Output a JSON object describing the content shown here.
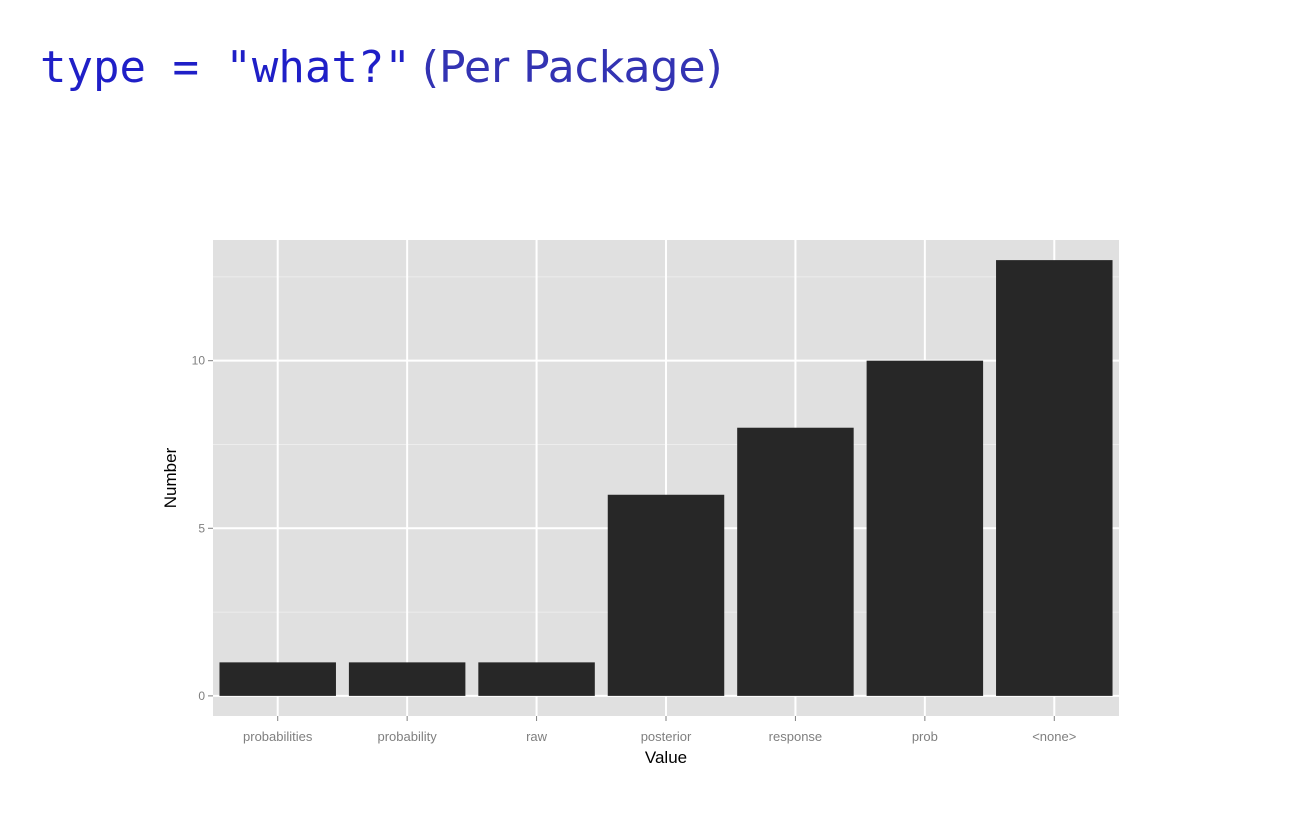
{
  "title": {
    "code": "type = \"what?\"",
    "plain": "(Per Package)"
  },
  "chart_data": {
    "type": "bar",
    "categories": [
      "probabilities",
      "probability",
      "raw",
      "posterior",
      "response",
      "prob",
      "<none>"
    ],
    "values": [
      1,
      1,
      1,
      6,
      8,
      10,
      13
    ],
    "xlabel": "Value",
    "ylabel": "Number",
    "ylim": [
      -0.6,
      13.6
    ],
    "yticks": [
      0,
      5,
      10
    ],
    "grid": true,
    "colors": {
      "bar": "#272727",
      "panel": "#e0e0e0",
      "grid": "#ffffff",
      "tick_text": "#7f7f7f"
    }
  }
}
